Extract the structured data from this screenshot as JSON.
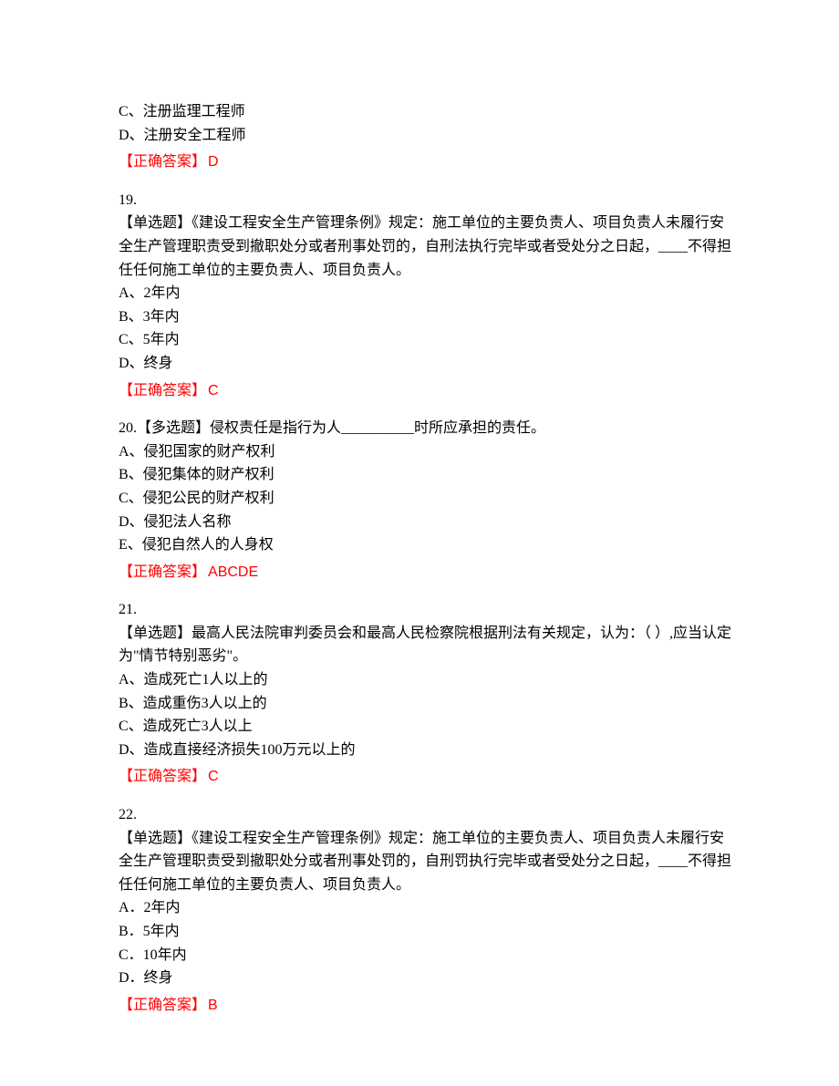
{
  "colors": {
    "text": "#000000",
    "answer": "#ff0000",
    "background": "#ffffff"
  },
  "typography": {
    "body_font": "SimSun",
    "answer_font": "Microsoft YaHei",
    "font_size_pt": 12,
    "line_height": 1.6
  },
  "q18_tail": {
    "options": [
      "C、注册监理工程师",
      "D、注册安全工程师"
    ],
    "answer_label": "【正确答案】",
    "answer_value": "D"
  },
  "q19": {
    "number": "19.",
    "stem": "【单选题】《建设工程安全生产管理条例》规定：施工单位的主要负责人、项目负责人未履行安全生产管理职责受到撤职处分或者刑事处罚的，自刑法执行完毕或者受处分之日起，____不得担任任何施工单位的主要负责人、项目负责人。",
    "options": [
      "A、2年内",
      "B、3年内",
      "C、5年内",
      "D、终身"
    ],
    "answer_label": "【正确答案】",
    "answer_value": "C"
  },
  "q20": {
    "number_and_stem": "20.【多选题】侵权责任是指行为人__________时所应承担的责任。",
    "options": [
      "A、侵犯国家的财产权利",
      "B、侵犯集体的财产权利",
      "C、侵犯公民的财产权利",
      "D、侵犯法人名称",
      "E、侵犯自然人的人身权"
    ],
    "answer_label": "【正确答案】",
    "answer_value": "ABCDE"
  },
  "q21": {
    "number": "21.",
    "stem": "【单选题】最高人民法院审判委员会和最高人民检察院根据刑法有关规定，认为：（ ）,应当认定为\"情节特别恶劣\"。",
    "options": [
      "A、造成死亡1人以上的",
      "B、造成重伤3人以上的",
      "C、造成死亡3人以上",
      "D、造成直接经济损失100万元以上的"
    ],
    "answer_label": "【正确答案】",
    "answer_value": "C"
  },
  "q22": {
    "number": "22.",
    "stem": "【单选题】《建设工程安全生产管理条例》规定：施工单位的主要负责人、项目负责人未履行安全生产管理职责受到撤职处分或者刑事处罚的，自刑罚执行完毕或者受处分之日起，____不得担任任何施工单位的主要负责人、项目负责人。",
    "options": [
      "A．2年内",
      "B．5年内",
      "C．10年内",
      "D．终身"
    ],
    "answer_label": "【正确答案】",
    "answer_value": "B"
  }
}
